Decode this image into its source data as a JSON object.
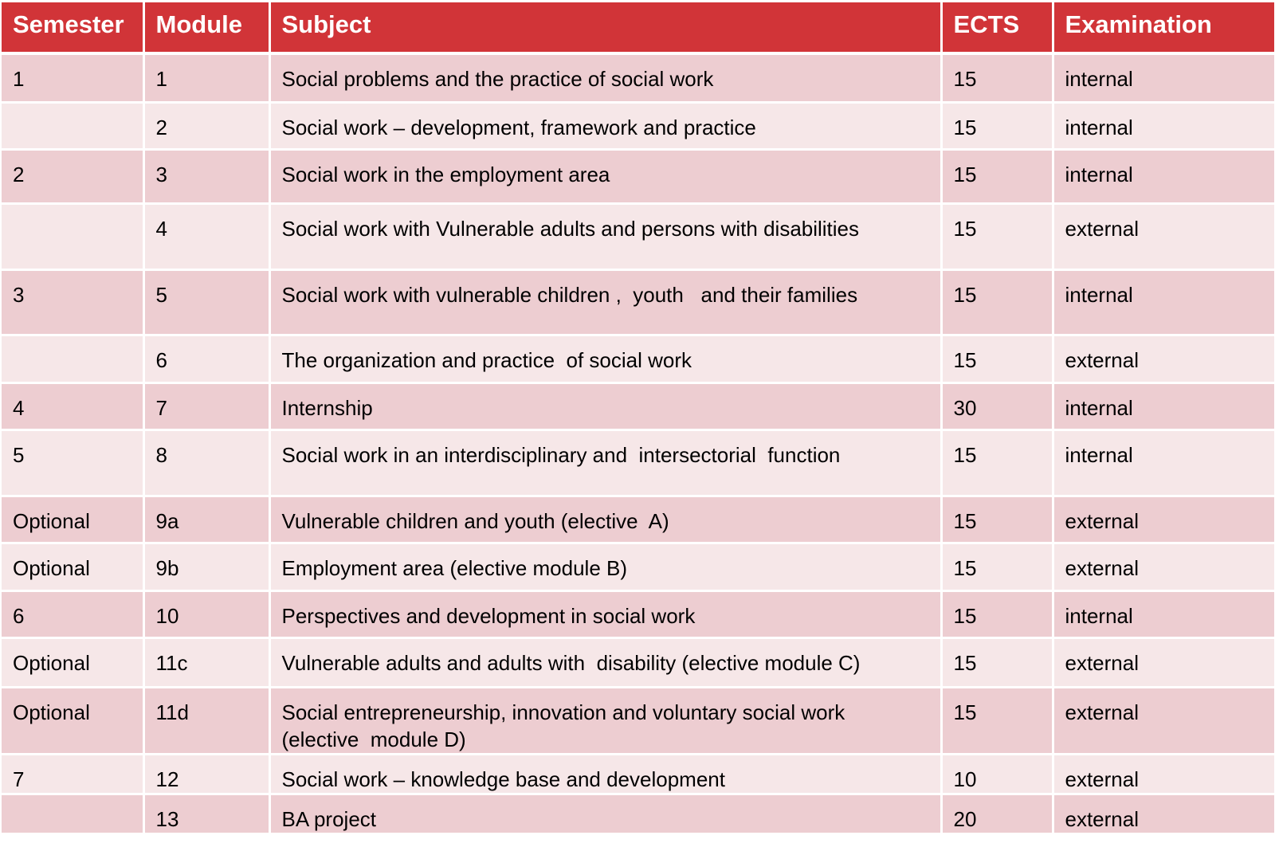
{
  "headers": [
    "Semester",
    "Module",
    "Subject",
    "ECTS",
    "Examination"
  ],
  "rows": [
    {
      "semester": "1",
      "module": "1",
      "subject": "Social problems and the practice of social work",
      "ects": "15",
      "exam": "internal"
    },
    {
      "semester": "",
      "module": "2",
      "subject": "Social work – development, framework and practice",
      "ects": "15",
      "exam": "internal"
    },
    {
      "semester": "2",
      "module": "3",
      "subject": "Social work in the employment area",
      "ects": "15",
      "exam": "internal"
    },
    {
      "semester": "",
      "module": "4",
      "subject": "Social work with Vulnerable adults and persons with disabilities",
      "ects": "15",
      "exam": "external"
    },
    {
      "semester": "3",
      "module": "5",
      "subject": "Social work with vulnerable children ,  youth   and their families",
      "ects": "15",
      "exam": "internal"
    },
    {
      "semester": "",
      "module": "6",
      "subject": "The organization and practice  of social work",
      "ects": "15",
      "exam": "external"
    },
    {
      "semester": "4",
      "module": "7",
      "subject": "Internship",
      "ects": "30",
      "exam": "internal"
    },
    {
      "semester": "5",
      "module": "8",
      "subject": "Social work in an interdisciplinary and  intersectorial  function",
      "ects": "15",
      "exam": "internal"
    },
    {
      "semester": "Optional",
      "module": "9a",
      "subject": "Vulnerable children and youth (elective  A)",
      "ects": "15",
      "exam": "external"
    },
    {
      "semester": "Optional",
      "module": "9b",
      "subject": "Employment area (elective module B)",
      "ects": "15",
      "exam": "external"
    },
    {
      "semester": "6",
      "module": "10",
      "subject": "Perspectives and development in social work",
      "ects": "15",
      "exam": "internal"
    },
    {
      "semester": "Optional",
      "module": "11c",
      "subject": "Vulnerable adults and adults with  disability (elective module C)",
      "ects": "15",
      "exam": "external"
    },
    {
      "semester": "Optional",
      "module": "11d",
      "subject": "Social entrepreneurship, innovation and voluntary social work\n(elective  module D)",
      "ects": "15",
      "exam": "external"
    },
    {
      "semester": "7",
      "module": "12",
      "subject": "Social work – knowledge base and development",
      "ects": "10",
      "exam": "external"
    },
    {
      "semester": "",
      "module": "13",
      "subject": "BA project",
      "ects": "20",
      "exam": "external"
    }
  ],
  "colors": {
    "header_bg": "#d13438",
    "row_odd_bg": "#edcdd1",
    "row_even_bg": "#f6e7e8"
  }
}
